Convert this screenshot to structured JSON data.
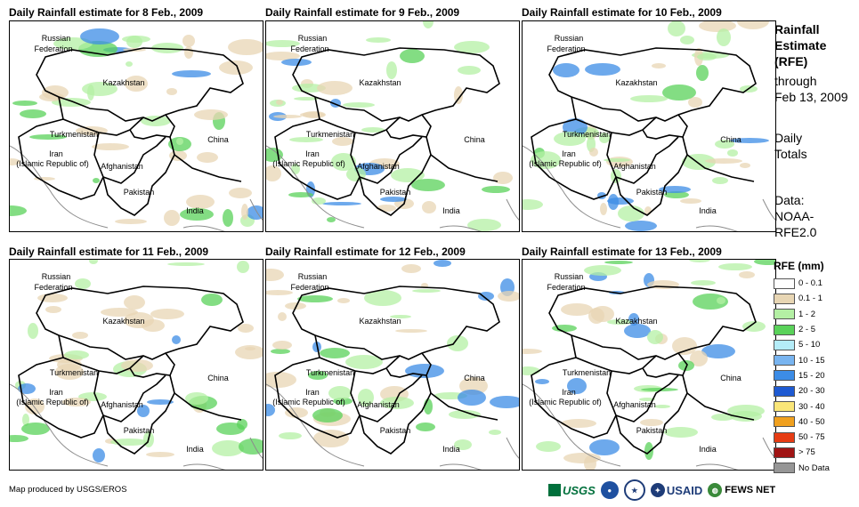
{
  "panels": [
    {
      "title": "Daily Rainfall estimate for 8 Feb., 2009"
    },
    {
      "title": "Daily Rainfall estimate for 9 Feb., 2009"
    },
    {
      "title": "Daily Rainfall estimate for 10 Feb., 2009"
    },
    {
      "title": "Daily Rainfall estimate for 11 Feb., 2009"
    },
    {
      "title": "Daily Rainfall estimate for 12 Feb., 2009"
    },
    {
      "title": "Daily Rainfall estimate for 13 Feb., 2009"
    }
  ],
  "map_labels": {
    "russia_line1": "Russian",
    "russia_line2": "Federation",
    "kazakhstan": "Kazakhstan",
    "turkmenistan": "Turkmenistan",
    "iran_line1": "Iran",
    "iran_line2": "(Islamic Republic of)",
    "afghanistan": "Afghanistan",
    "pakistan": "Pakistan",
    "china": "China",
    "india": "India"
  },
  "side_info": {
    "title_line1": "Rainfall",
    "title_line2": "Estimate",
    "title_line3": "(RFE)",
    "through": "through",
    "through_date": "Feb 13, 2009",
    "totals_line1": "Daily",
    "totals_line2": "Totals",
    "data_line1": "Data:",
    "data_line2": "NOAA-",
    "data_line3": "RFE2.0"
  },
  "legend": {
    "title": "RFE (mm)",
    "items": [
      {
        "label": "0 - 0.1",
        "color": "#ffffff"
      },
      {
        "label": "0.1 - 1",
        "color": "#e8d6b4"
      },
      {
        "label": "1 - 2",
        "color": "#b4f0a4"
      },
      {
        "label": "2 - 5",
        "color": "#5ad25a"
      },
      {
        "label": "5 - 10",
        "color": "#b4ecf8"
      },
      {
        "label": "10 - 15",
        "color": "#78b4f0"
      },
      {
        "label": "15 - 20",
        "color": "#3c8ce6"
      },
      {
        "label": "20 - 30",
        "color": "#1e5ad2"
      },
      {
        "label": "30 - 40",
        "color": "#fae678"
      },
      {
        "label": "40 - 50",
        "color": "#f0a01e"
      },
      {
        "label": "50 - 75",
        "color": "#e63c14"
      },
      {
        "label": "> 75",
        "color": "#a01414"
      },
      {
        "label": "No Data",
        "color": "#969696"
      }
    ]
  },
  "credit": "Map produced by USGS/EROS",
  "logos": {
    "usgs": "USGS",
    "usaid": "USAID",
    "fewsnet": "FEWS NET"
  },
  "colors": {
    "border": "#000000",
    "coast": "#8c8c8c",
    "tan": "#e8d6b4",
    "lightgreen": "#b4f0a4",
    "green": "#5ad25a",
    "blue": "#3c8ce6"
  }
}
